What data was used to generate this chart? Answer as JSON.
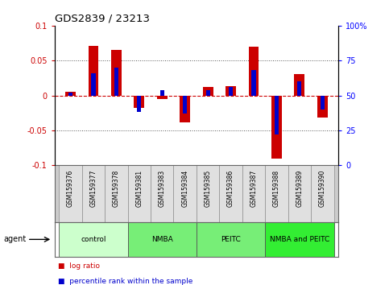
{
  "title": "GDS2839 / 23213",
  "samples": [
    "GSM159376",
    "GSM159377",
    "GSM159378",
    "GSM159381",
    "GSM159383",
    "GSM159384",
    "GSM159385",
    "GSM159386",
    "GSM159387",
    "GSM159388",
    "GSM159389",
    "GSM159390"
  ],
  "log_ratio": [
    0.005,
    0.071,
    0.065,
    -0.018,
    -0.005,
    -0.038,
    0.012,
    0.013,
    0.07,
    -0.09,
    0.031,
    -0.032
  ],
  "percentile": [
    52,
    66,
    70,
    38,
    54,
    37,
    54,
    56,
    68,
    22,
    60,
    40
  ],
  "groups": [
    {
      "label": "control",
      "start": 0,
      "end": 3,
      "color": "#ccffcc"
    },
    {
      "label": "NMBA",
      "start": 3,
      "end": 6,
      "color": "#77ee77"
    },
    {
      "label": "PEITC",
      "start": 6,
      "end": 9,
      "color": "#77ee77"
    },
    {
      "label": "NMBA and PEITC",
      "start": 9,
      "end": 12,
      "color": "#33ee33"
    }
  ],
  "bar_color_red": "#cc0000",
  "bar_color_blue": "#0000cc",
  "ylim": [
    -0.1,
    0.1
  ],
  "y2lim": [
    0,
    100
  ],
  "yticks": [
    -0.1,
    -0.05,
    0.0,
    0.05,
    0.1
  ],
  "ytick_labels": [
    "-0.1",
    "-0.05",
    "0",
    "0.05",
    "0.1"
  ],
  "y2ticks": [
    0,
    25,
    50,
    75,
    100
  ],
  "y2tick_labels": [
    "0",
    "25",
    "50",
    "75",
    "100%"
  ],
  "hline_color": "#cc0000",
  "dotted_color": "#555555",
  "red_bar_width": 0.45,
  "blue_bar_width": 0.18,
  "agent_label": "agent",
  "legend_red": "log ratio",
  "legend_blue": "percentile rank within the sample"
}
